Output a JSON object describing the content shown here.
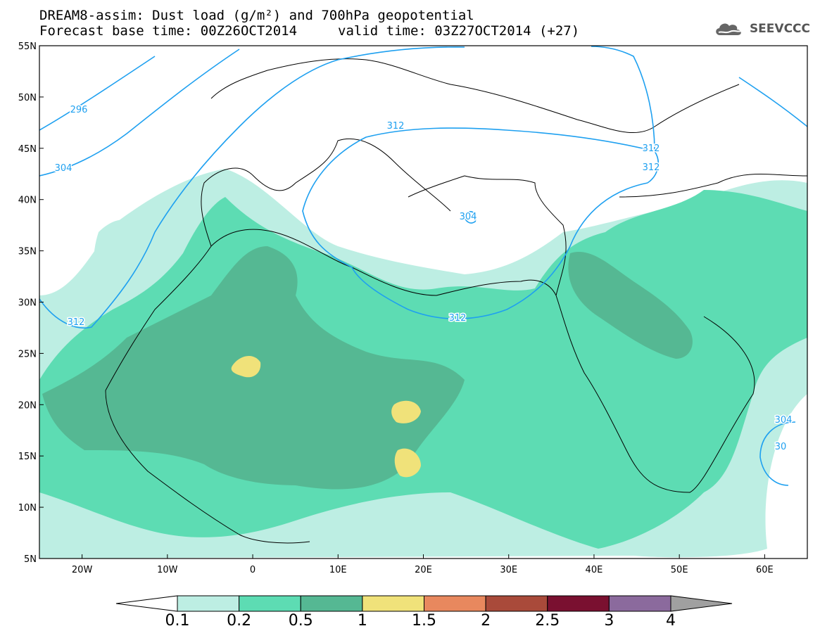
{
  "header": {
    "title_line1": "DREAM8-assim: Dust load (g/m²) and 700hPa geopotential",
    "title_line2_left": "Forecast base time: 00Z26OCT2014",
    "title_line2_right": "valid time: 03Z27OCT2014 (+27)",
    "logo_text": "SEEVCCC"
  },
  "map": {
    "lon_range": [
      -25,
      65
    ],
    "lat_range": [
      5,
      55
    ],
    "lat_ticks": [
      "55N",
      "50N",
      "45N",
      "40N",
      "35N",
      "30N",
      "25N",
      "20N",
      "15N",
      "10N",
      "5N"
    ],
    "lon_ticks": [
      "20W",
      "10W",
      "0",
      "10E",
      "20E",
      "30E",
      "40E",
      "50E",
      "60E"
    ],
    "contour_labels": [
      "296",
      "304",
      "312",
      "312",
      "312",
      "312",
      "304",
      "312",
      "304",
      "30"
    ],
    "colors": {
      "level_0_1": "#bdeee3",
      "level_0_2": "#5ddcb3",
      "level_0_5": "#55b893",
      "level_1": "#f0e27a",
      "contour": "#1ea0f0"
    }
  },
  "colorbar": {
    "labels": [
      "0.1",
      "0.2",
      "0.5",
      "1",
      "1.5",
      "2",
      "2.5",
      "3",
      "4"
    ],
    "colors": [
      "#ffffff",
      "#bdeee3",
      "#5ddcb3",
      "#55b893",
      "#f0e27a",
      "#e8885e",
      "#a94a3a",
      "#7a1030",
      "#8b6a9d",
      "#a0a0a0"
    ]
  }
}
